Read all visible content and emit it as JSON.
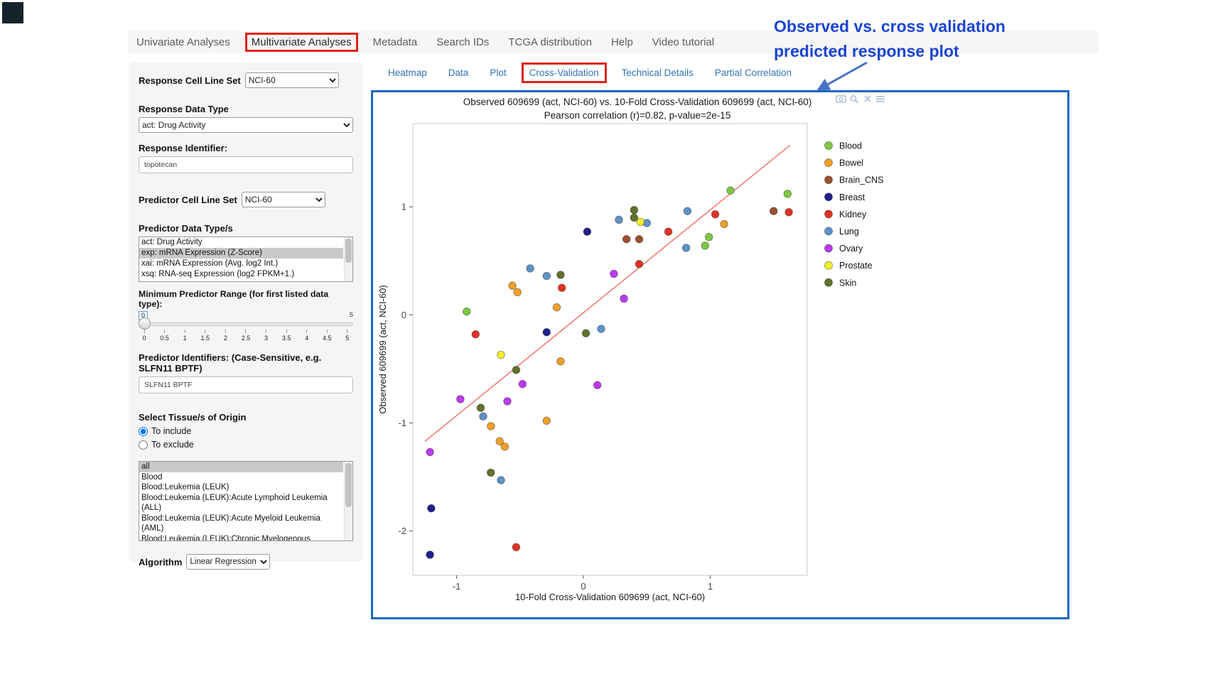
{
  "colors": {
    "accent_red": "#e0241b",
    "panel_border_blue": "#2069c0",
    "annotation_blue": "#1b45d2",
    "link_blue": "#3374b5"
  },
  "annotation": {
    "line1": "Observed vs. cross validation",
    "line2": "predicted response plot"
  },
  "nav": {
    "items": [
      {
        "label": "Univariate Analyses",
        "active": false
      },
      {
        "label": "Multivariate Analyses",
        "active": true
      },
      {
        "label": "Metadata",
        "active": false
      },
      {
        "label": "Search IDs",
        "active": false
      },
      {
        "label": "TCGA distribution",
        "active": false
      },
      {
        "label": "Help",
        "active": false
      },
      {
        "label": "Video tutorial",
        "active": false
      }
    ]
  },
  "sidebar": {
    "response_cell_line_set": {
      "label": "Response Cell Line Set",
      "value": "NCI-60"
    },
    "response_data_type": {
      "label": "Response Data Type",
      "value": "act: Drug Activity"
    },
    "response_identifier": {
      "label": "Response Identifier:",
      "value": "topotecan"
    },
    "predictor_cell_line_set": {
      "label": "Predictor Cell Line Set",
      "value": "NCI-60"
    },
    "predictor_data_types": {
      "label": "Predictor Data Type/s",
      "options": [
        "act: Drug Activity",
        "exp: mRNA Expression (Z-Score)",
        "xai: mRNA Expression (Avg. log2 Int.)",
        "xsq: RNA-seq Expression (log2 FPKM+1.)"
      ],
      "selected": "exp: mRNA Expression (Z-Score)"
    },
    "min_predictor_range": {
      "label": "Minimum Predictor Range (for first listed data type):",
      "value": "0",
      "max_label": "5",
      "ticks": [
        "0",
        "0.5",
        "1",
        "1.5",
        "2",
        "2.5",
        "3",
        "3.5",
        "4",
        "4.5",
        "5"
      ]
    },
    "predictor_identifiers": {
      "label": "Predictor Identifiers: (Case-Sensitive, e.g. SLFN11 BPTF)",
      "value": "SLFN11 BPTF"
    },
    "tissue_origin": {
      "label": "Select Tissue/s of Origin",
      "options": [
        {
          "label": "To include",
          "selected": true
        },
        {
          "label": "To exclude",
          "selected": false
        }
      ]
    },
    "tissue_list": {
      "options": [
        "all",
        "Blood",
        "Blood:Leukemia (LEUK)",
        "Blood:Leukemia (LEUK):Acute Lymphoid Leukemia (ALL)",
        "Blood:Leukemia (LEUK):Acute Myeloid Leukemia (AML)",
        "Blood:Leukemia (LEUK):Chronic Myelogenous Leukemia (CML)"
      ],
      "selected": "all"
    },
    "algorithm": {
      "label": "Algorithm",
      "value": "Linear Regression"
    }
  },
  "tabs": {
    "items": [
      {
        "label": "Heatmap",
        "active": false
      },
      {
        "label": "Data",
        "active": false
      },
      {
        "label": "Plot",
        "active": false
      },
      {
        "label": "Cross-Validation",
        "active": true
      },
      {
        "label": "Technical Details",
        "active": false
      },
      {
        "label": "Partial Correlation",
        "active": false
      }
    ]
  },
  "chart_data": {
    "type": "scatter",
    "title": "Observed 609699 (act, NCI-60) vs. 10-Fold Cross-Validation 609699 (act, NCI-60)",
    "subtitle": "Pearson correlation (r)=0.82, p-value=2e-15",
    "xlabel": "10-Fold Cross-Validation 609699 (act, NCI-60)",
    "ylabel": "Observed 609699 (act, NCI-60)",
    "xlim": [
      -1.345,
      1.765
    ],
    "ylim": [
      -2.41,
      1.77
    ],
    "xticks": [
      -1,
      0,
      1
    ],
    "yticks": [
      -2,
      -1,
      0,
      1
    ],
    "grid": false,
    "legend_position": "right",
    "regression_line": {
      "x1": -1.25,
      "y1": -1.17,
      "x2": 1.63,
      "y2": 1.57,
      "color": "#f4837d"
    },
    "toolbar_icons": [
      "camera",
      "zoom",
      "close",
      "menu"
    ],
    "groups": [
      {
        "name": "Blood",
        "color": "#7dc943",
        "points": [
          [
            -0.92,
            0.03
          ],
          [
            0.96,
            0.64
          ],
          [
            0.99,
            0.72
          ],
          [
            1.16,
            1.15
          ],
          [
            1.61,
            1.12
          ]
        ]
      },
      {
        "name": "Bowel",
        "color": "#f0a028",
        "points": [
          [
            -0.56,
            0.27
          ],
          [
            -0.52,
            0.21
          ],
          [
            -0.21,
            0.07
          ],
          [
            -0.18,
            -0.43
          ],
          [
            -0.29,
            -0.98
          ],
          [
            -0.73,
            -1.03
          ],
          [
            -0.66,
            -1.17
          ],
          [
            -0.62,
            -1.22
          ],
          [
            1.11,
            0.84
          ]
        ]
      },
      {
        "name": "Brain_CNS",
        "color": "#9c5130",
        "points": [
          [
            0.34,
            0.7
          ],
          [
            0.44,
            0.7
          ],
          [
            1.5,
            0.96
          ]
        ]
      },
      {
        "name": "Breast",
        "color": "#20208c",
        "points": [
          [
            0.03,
            0.77
          ],
          [
            -0.29,
            -0.16
          ],
          [
            -1.2,
            -1.79
          ],
          [
            -1.21,
            -2.22
          ]
        ]
      },
      {
        "name": "Kidney",
        "color": "#e23222",
        "points": [
          [
            -0.85,
            -0.18
          ],
          [
            -0.17,
            0.25
          ],
          [
            0.44,
            0.47
          ],
          [
            0.67,
            0.77
          ],
          [
            1.04,
            0.93
          ],
          [
            1.62,
            0.95
          ],
          [
            -0.53,
            -2.15
          ]
        ]
      },
      {
        "name": "Lung",
        "color": "#5e93c8",
        "points": [
          [
            -0.42,
            0.43
          ],
          [
            -0.29,
            0.36
          ],
          [
            0.28,
            0.88
          ],
          [
            0.5,
            0.85
          ],
          [
            0.82,
            0.96
          ],
          [
            0.81,
            0.62
          ],
          [
            0.14,
            -0.13
          ],
          [
            -0.79,
            -0.94
          ],
          [
            -0.65,
            -1.53
          ]
        ]
      },
      {
        "name": "Ovary",
        "color": "#bb3af2",
        "points": [
          [
            -0.97,
            -0.78
          ],
          [
            -1.21,
            -1.27
          ],
          [
            -0.6,
            -0.8
          ],
          [
            -0.48,
            -0.64
          ],
          [
            0.11,
            -0.65
          ],
          [
            0.24,
            0.38
          ],
          [
            0.32,
            0.15
          ]
        ]
      },
      {
        "name": "Prostate",
        "color": "#f0ef30",
        "points": [
          [
            -0.65,
            -0.37
          ],
          [
            0.45,
            0.86
          ]
        ]
      },
      {
        "name": "Skin",
        "color": "#61722c",
        "points": [
          [
            -0.81,
            -0.86
          ],
          [
            -0.73,
            -1.46
          ],
          [
            -0.53,
            -0.51
          ],
          [
            -0.18,
            0.37
          ],
          [
            0.02,
            -0.17
          ],
          [
            0.4,
            0.9
          ],
          [
            0.4,
            0.97
          ]
        ]
      }
    ]
  }
}
